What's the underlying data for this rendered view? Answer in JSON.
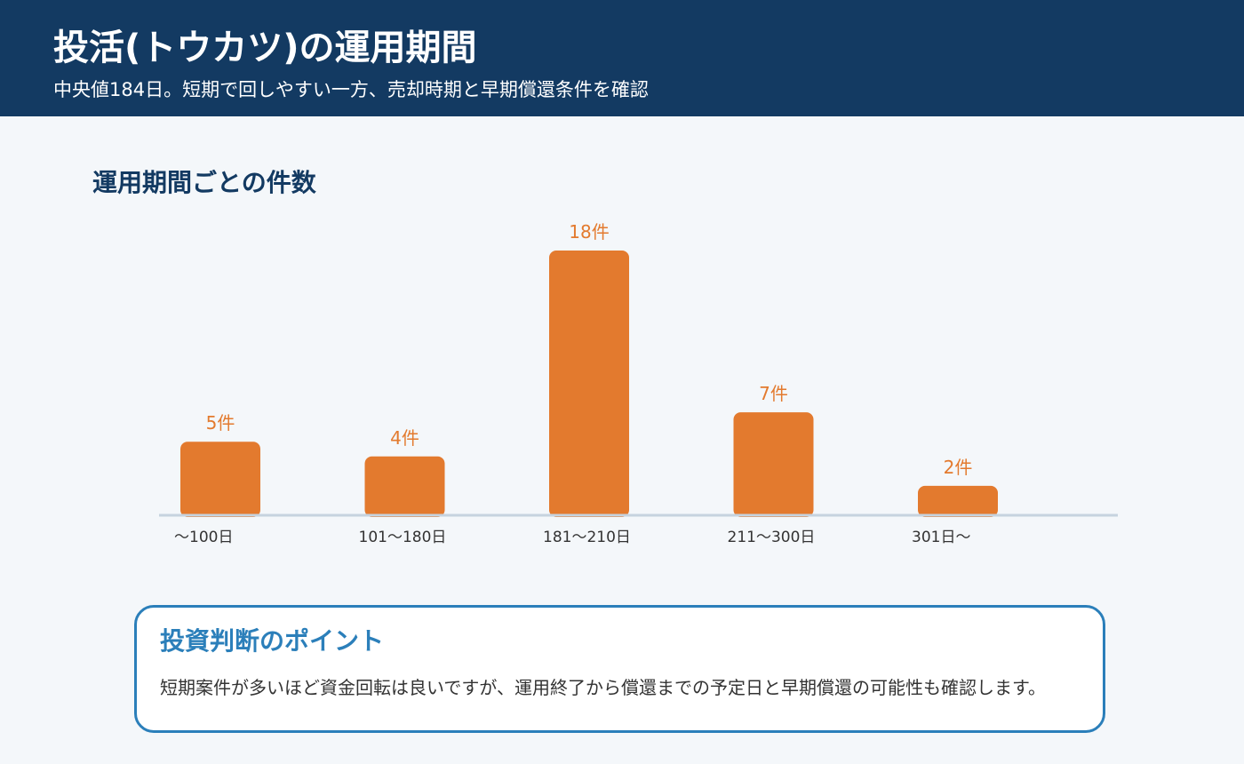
{
  "header": {
    "title": "投活(トウカツ)の運用期間",
    "subtitle": "中央値184日。短期で回しやすい一方、売却時期と早期償還条件を確認"
  },
  "chart_data": {
    "type": "bar",
    "title": "運用期間ごとの件数",
    "categories": [
      "〜100日",
      "101〜180日",
      "181〜210日",
      "211〜300日",
      "301日〜"
    ],
    "values": [
      5,
      4,
      18,
      7,
      2
    ],
    "value_labels": [
      "5件",
      "4件",
      "18件",
      "7件",
      "2件"
    ],
    "xlabel": "",
    "ylabel": "",
    "ylim": [
      0,
      18
    ],
    "grid": false,
    "bar_color": "#e37a2e"
  },
  "callout": {
    "title": "投資判断のポイント",
    "text": "短期案件が多いほど資金回転は良いですが、運用終了から償還までの予定日と早期償還の可能性も確認します。"
  },
  "colors": {
    "header_bg": "#133a62",
    "accent": "#e37a2e",
    "callout_border": "#2b7fba"
  }
}
